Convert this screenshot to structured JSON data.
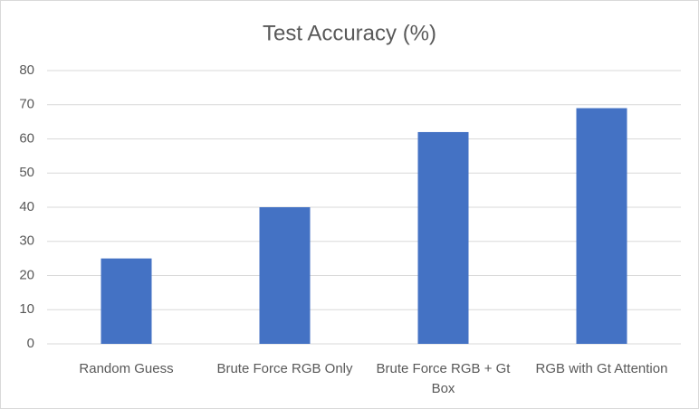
{
  "chart_data": {
    "type": "bar",
    "title": "Test Accuracy (%)",
    "categories": [
      "Random Guess",
      "Brute Force RGB Only",
      "Brute Force RGB + Gt Box",
      "RGB with Gt Attention"
    ],
    "values": [
      25,
      40,
      62,
      69
    ],
    "color": "#4472c4",
    "ylim": [
      0,
      80
    ],
    "yticks": [
      0,
      10,
      20,
      30,
      40,
      50,
      60,
      70,
      80
    ],
    "grid": true
  }
}
